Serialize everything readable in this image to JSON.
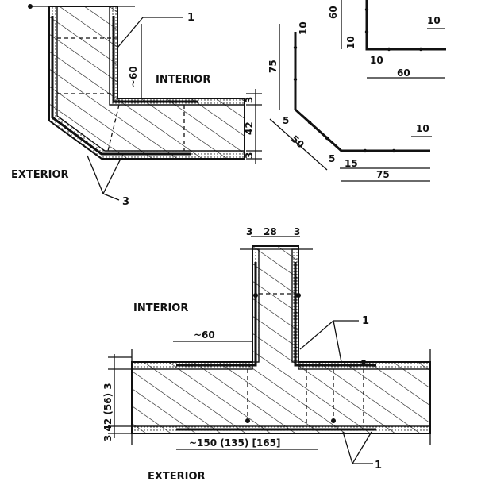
{
  "labels": {
    "interior": "INTERIOR",
    "exterior": "EXTERIOR"
  },
  "callouts": {
    "one": "1",
    "three": "3"
  },
  "dimensions": {
    "approx_60": "~60",
    "d3": "3",
    "d42": "42",
    "d60": "60",
    "d10": "10",
    "d75": "75",
    "d50": "50",
    "d5": "5",
    "d15": "15",
    "d28": "28",
    "stack_56": "3 42 (56) 3",
    "bottom_span": "~150 (135)  [165]"
  }
}
